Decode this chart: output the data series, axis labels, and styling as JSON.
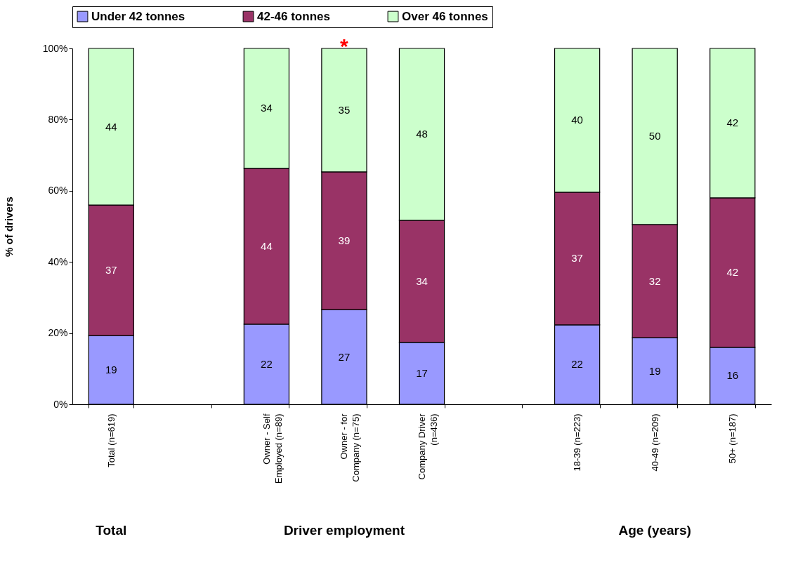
{
  "chart_data": {
    "type": "bar",
    "stacked": true,
    "ylabel": "% of drivers",
    "categories": [
      "Total (n=619)",
      null,
      "Owner - Self\nEmployed (n=89)",
      "Owner - for\nCompany (n=75)",
      "Company Driver\n(n=436)",
      null,
      "18-39 (n=223)",
      "40-49 (n=209)",
      "50+ (n=187)"
    ],
    "series": [
      {
        "name": "Under 42 tonnes",
        "color": "#9999ff",
        "values": [
          19.3,
          null,
          22.5,
          26.6,
          17.4,
          null,
          22.3,
          18.7,
          16.0
        ],
        "value_labels": [
          "19",
          null,
          "22",
          "27",
          "17",
          null,
          "22",
          "19",
          "16"
        ]
      },
      {
        "name": "42-46 tonnes",
        "color": "#993366",
        "values": [
          36.7,
          null,
          43.8,
          38.7,
          34.3,
          null,
          37.3,
          31.8,
          42.0
        ],
        "value_labels": [
          "37",
          null,
          "44",
          "39",
          "34",
          null,
          "37",
          "32",
          "42"
        ]
      },
      {
        "name": "Over 46 tonnes",
        "color": "#ccffcc",
        "values": [
          44.0,
          null,
          33.7,
          34.7,
          48.3,
          null,
          40.4,
          49.5,
          42.0
        ],
        "value_labels": [
          "44",
          null,
          "34",
          "35",
          "48",
          null,
          "40",
          "50",
          "42"
        ]
      }
    ],
    "ylim": [
      0,
      100
    ],
    "yticks": [
      {
        "value": 0,
        "label": "0%"
      },
      {
        "value": 20,
        "label": "20%"
      },
      {
        "value": 40,
        "label": "40%"
      },
      {
        "value": 60,
        "label": "60%"
      },
      {
        "value": 80,
        "label": "80%"
      },
      {
        "value": 100,
        "label": "100%"
      }
    ],
    "grid": false,
    "legend": "top",
    "annotations": [
      {
        "text": "*",
        "x": "Owner - for\nCompany (n=75)",
        "y": 100
      },
      "Total",
      "Driver employment",
      "Age (years)"
    ]
  }
}
